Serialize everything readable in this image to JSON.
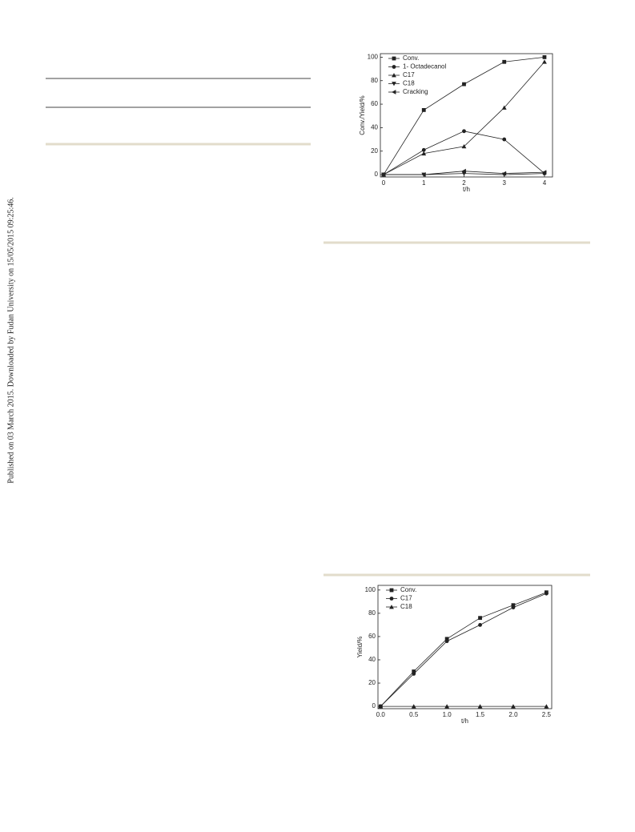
{
  "side_note": "Published on 03 March 2015. Downloaded by Fudan University on 15/05/2015 09:25:46.",
  "chart_data": [
    {
      "type": "line",
      "xlabel": "t/h",
      "ylabel": "Conv./Yield/%",
      "legend": "upper left",
      "x": [
        0,
        1,
        2,
        3,
        4
      ],
      "xlim": [
        -0.08,
        4.2
      ],
      "ylim": [
        -2,
        103
      ],
      "xticks": [
        0,
        1,
        2,
        3,
        4
      ],
      "yticks": [
        0,
        20,
        40,
        60,
        80,
        100
      ],
      "series": [
        {
          "name": "Conv.",
          "color": "#222222",
          "marker": "square",
          "values": [
            0,
            55,
            77,
            96,
            100
          ]
        },
        {
          "name": "1- Octadecanol",
          "color": "#222222",
          "marker": "circle",
          "values": [
            0,
            21,
            37,
            30,
            1
          ]
        },
        {
          "name": "C17",
          "color": "#222222",
          "marker": "triangle-up",
          "values": [
            0,
            18,
            24,
            57,
            96
          ]
        },
        {
          "name": "C18",
          "color": "#222222",
          "marker": "triangle-down",
          "values": [
            0,
            0,
            1,
            0,
            1
          ]
        },
        {
          "name": "Cracking",
          "color": "#222222",
          "marker": "triangle-left",
          "values": [
            0,
            0,
            3,
            1,
            2
          ]
        }
      ]
    },
    {
      "type": "line",
      "xlabel": "t/h",
      "ylabel": "Yield/%",
      "legend": "upper left",
      "x": [
        0,
        0.5,
        1,
        1.5,
        2,
        2.5
      ],
      "xlim": [
        -0.04,
        2.58
      ],
      "ylim": [
        -2,
        104
      ],
      "xticks": [
        {
          "value": 0,
          "label": "0.0"
        },
        0.5,
        {
          "value": 1,
          "label": "1.0"
        },
        1.5,
        {
          "value": 2,
          "label": "2.0"
        },
        2.5
      ],
      "yticks": [
        0,
        20,
        40,
        60,
        80,
        100
      ],
      "series": [
        {
          "name": "Conv.",
          "color": "#222222",
          "marker": "square",
          "values": [
            0,
            30,
            58,
            76,
            87,
            98
          ]
        },
        {
          "name": "C17",
          "color": "#222222",
          "marker": "circle",
          "values": [
            0,
            28,
            56,
            70,
            85,
            97
          ]
        },
        {
          "name": "C18",
          "color": "#222222",
          "marker": "triangle-up",
          "values": [
            0,
            0,
            0,
            0,
            0,
            0
          ]
        }
      ]
    }
  ]
}
